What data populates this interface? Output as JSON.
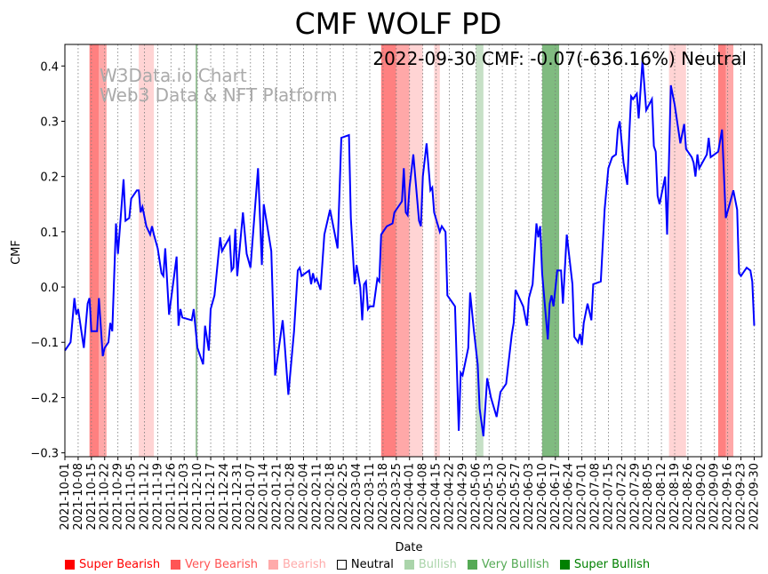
{
  "chart_data": {
    "type": "line",
    "title": "CMF WOLF PD",
    "xlabel": "Date",
    "ylabel": "CMF",
    "annotation": "2022-09-30 CMF: -0.07(-636.16%) Neutral",
    "watermark": [
      "W3Data.io Chart",
      "Web3 Data & NFT Platform"
    ],
    "x_origin": "2021-10-01",
    "x_units": "days since 2021-10-01",
    "xlim": [
      0,
      368
    ],
    "ylim": [
      -0.307,
      0.439
    ],
    "yticks": [
      -0.3,
      -0.2,
      -0.1,
      0.0,
      0.1,
      0.2,
      0.3,
      0.4
    ],
    "ytick_labels": [
      "−0.3",
      "−0.2",
      "−0.1",
      "0.0",
      "0.1",
      "0.2",
      "0.3",
      "0.4"
    ],
    "xtick_days": [
      0,
      7,
      14,
      21,
      28,
      35,
      42,
      49,
      56,
      63,
      70,
      77,
      84,
      91,
      98,
      105,
      112,
      119,
      126,
      133,
      140,
      147,
      154,
      161,
      168,
      175,
      182,
      189,
      196,
      203,
      210,
      217,
      224,
      231,
      238,
      245,
      252,
      259,
      266,
      273,
      280,
      287,
      294,
      301,
      308,
      315,
      322,
      329,
      336,
      343,
      350,
      357,
      364
    ],
    "xtick_labels": [
      "2021-10-01",
      "2021-10-08",
      "2021-10-15",
      "2021-10-22",
      "2021-10-29",
      "2021-11-05",
      "2021-11-12",
      "2021-11-19",
      "2021-11-26",
      "2021-12-03",
      "2021-12-10",
      "2021-12-17",
      "2021-12-24",
      "2021-12-31",
      "2022-01-07",
      "2022-01-14",
      "2022-01-21",
      "2022-01-28",
      "2022-02-04",
      "2022-02-11",
      "2022-02-18",
      "2022-02-25",
      "2022-03-04",
      "2022-03-11",
      "2022-03-18",
      "2022-03-25",
      "2022-04-01",
      "2022-04-08",
      "2022-04-15",
      "2022-04-22",
      "2022-04-29",
      "2022-05-06",
      "2022-05-13",
      "2022-05-20",
      "2022-05-27",
      "2022-06-03",
      "2022-06-10",
      "2022-06-17",
      "2022-06-24",
      "2022-07-01",
      "2022-07-08",
      "2022-07-15",
      "2022-07-22",
      "2022-07-29",
      "2022-08-05",
      "2022-08-12",
      "2022-08-19",
      "2022-08-26",
      "2022-09-02",
      "2022-09-09",
      "2022-09-16",
      "2022-09-23",
      "2022-09-30"
    ],
    "grid": "vertical dotted at x ticks",
    "series": [
      {
        "name": "CMF",
        "color": "#0000ff",
        "points": [
          [
            0,
            -0.115
          ],
          [
            3,
            -0.1
          ],
          [
            5,
            -0.02
          ],
          [
            6,
            -0.05
          ],
          [
            7,
            -0.04
          ],
          [
            10,
            -0.11
          ],
          [
            12,
            -0.03
          ],
          [
            13,
            -0.02
          ],
          [
            14,
            -0.08
          ],
          [
            17,
            -0.08
          ],
          [
            18,
            -0.02
          ],
          [
            20,
            -0.125
          ],
          [
            21,
            -0.11
          ],
          [
            23,
            -0.1
          ],
          [
            24,
            -0.065
          ],
          [
            25,
            -0.08
          ],
          [
            27,
            0.115
          ],
          [
            28,
            0.06
          ],
          [
            30,
            0.15
          ],
          [
            31,
            0.195
          ],
          [
            32,
            0.12
          ],
          [
            34,
            0.125
          ],
          [
            35,
            0.16
          ],
          [
            38,
            0.175
          ],
          [
            39,
            0.175
          ],
          [
            40,
            0.135
          ],
          [
            41,
            0.145
          ],
          [
            43,
            0.11
          ],
          [
            45,
            0.095
          ],
          [
            46,
            0.11
          ],
          [
            47,
            0.095
          ],
          [
            49,
            0.07
          ],
          [
            51,
            0.025
          ],
          [
            52,
            0.02
          ],
          [
            53,
            0.07
          ],
          [
            55,
            -0.05
          ],
          [
            59,
            0.055
          ],
          [
            60,
            -0.07
          ],
          [
            61,
            -0.04
          ],
          [
            62,
            -0.055
          ],
          [
            67,
            -0.06
          ],
          [
            68,
            -0.04
          ],
          [
            70,
            -0.11
          ],
          [
            73,
            -0.14
          ],
          [
            74,
            -0.07
          ],
          [
            76,
            -0.115
          ],
          [
            77,
            -0.04
          ],
          [
            79,
            -0.015
          ],
          [
            82,
            0.09
          ],
          [
            83,
            0.065
          ],
          [
            87,
            0.09
          ],
          [
            88,
            0.03
          ],
          [
            89,
            0.035
          ],
          [
            90,
            0.105
          ],
          [
            91,
            0.02
          ],
          [
            94,
            0.135
          ],
          [
            96,
            0.06
          ],
          [
            98,
            0.035
          ],
          [
            102,
            0.215
          ],
          [
            104,
            0.04
          ],
          [
            105,
            0.15
          ],
          [
            109,
            0.065
          ],
          [
            111,
            -0.16
          ],
          [
            115,
            -0.06
          ],
          [
            116,
            -0.1
          ],
          [
            118,
            -0.195
          ],
          [
            121,
            -0.08
          ],
          [
            123,
            0.03
          ],
          [
            124,
            0.035
          ],
          [
            125,
            0.02
          ],
          [
            129,
            0.03
          ],
          [
            130,
            0.005
          ],
          [
            131,
            0.025
          ],
          [
            132,
            0.01
          ],
          [
            133,
            0.015
          ],
          [
            135,
            -0.005
          ],
          [
            137,
            0.095
          ],
          [
            140,
            0.14
          ],
          [
            144,
            0.07
          ],
          [
            146,
            0.27
          ],
          [
            150,
            0.275
          ],
          [
            151,
            0.125
          ],
          [
            153,
            0.005
          ],
          [
            154,
            0.04
          ],
          [
            156,
            0.0
          ],
          [
            157,
            -0.06
          ],
          [
            158,
            0.005
          ],
          [
            159,
            0.01
          ],
          [
            160,
            -0.04
          ],
          [
            161,
            -0.035
          ],
          [
            163,
            -0.035
          ],
          [
            165,
            0.015
          ],
          [
            166,
            0.01
          ],
          [
            167,
            0.095
          ],
          [
            170,
            0.11
          ],
          [
            173,
            0.115
          ],
          [
            174,
            0.135
          ],
          [
            178,
            0.155
          ],
          [
            179,
            0.215
          ],
          [
            180,
            0.135
          ],
          [
            181,
            0.13
          ],
          [
            182,
            0.18
          ],
          [
            184,
            0.24
          ],
          [
            187,
            0.12
          ],
          [
            188,
            0.11
          ],
          [
            189,
            0.2
          ],
          [
            191,
            0.26
          ],
          [
            193,
            0.175
          ],
          [
            194,
            0.18
          ],
          [
            195,
            0.135
          ],
          [
            198,
            0.1
          ],
          [
            199,
            0.11
          ],
          [
            201,
            0.1
          ],
          [
            202,
            -0.015
          ],
          [
            206,
            -0.035
          ],
          [
            208,
            -0.26
          ],
          [
            209,
            -0.155
          ],
          [
            210,
            -0.16
          ],
          [
            213,
            -0.11
          ],
          [
            214,
            -0.01
          ],
          [
            216,
            -0.08
          ],
          [
            218,
            -0.14
          ],
          [
            219,
            -0.22
          ],
          [
            221,
            -0.27
          ],
          [
            223,
            -0.165
          ],
          [
            225,
            -0.2
          ],
          [
            228,
            -0.235
          ],
          [
            230,
            -0.19
          ],
          [
            233,
            -0.175
          ],
          [
            236,
            -0.085
          ],
          [
            237,
            -0.065
          ],
          [
            238,
            -0.005
          ],
          [
            240,
            -0.02
          ],
          [
            242,
            -0.035
          ],
          [
            244,
            -0.07
          ],
          [
            245,
            -0.02
          ],
          [
            247,
            0.005
          ],
          [
            249,
            0.115
          ],
          [
            250,
            0.09
          ],
          [
            251,
            0.11
          ],
          [
            252,
            0.025
          ],
          [
            255,
            -0.095
          ],
          [
            256,
            -0.03
          ],
          [
            257,
            -0.015
          ],
          [
            258,
            -0.035
          ],
          [
            260,
            0.03
          ],
          [
            262,
            0.03
          ],
          [
            263,
            -0.03
          ],
          [
            265,
            0.095
          ],
          [
            268,
            0.005
          ],
          [
            269,
            -0.09
          ],
          [
            271,
            -0.1
          ],
          [
            272,
            -0.085
          ],
          [
            273,
            -0.105
          ],
          [
            274,
            -0.065
          ],
          [
            276,
            -0.03
          ],
          [
            278,
            -0.06
          ],
          [
            279,
            0.005
          ],
          [
            283,
            0.01
          ],
          [
            285,
            0.14
          ],
          [
            287,
            0.215
          ],
          [
            289,
            0.235
          ],
          [
            291,
            0.24
          ],
          [
            292,
            0.285
          ],
          [
            293,
            0.3
          ],
          [
            295,
            0.225
          ],
          [
            297,
            0.185
          ],
          [
            298,
            0.275
          ],
          [
            299,
            0.345
          ],
          [
            300,
            0.34
          ],
          [
            302,
            0.35
          ],
          [
            303,
            0.305
          ],
          [
            305,
            0.41
          ],
          [
            307,
            0.32
          ],
          [
            310,
            0.34
          ],
          [
            311,
            0.255
          ],
          [
            312,
            0.245
          ],
          [
            313,
            0.165
          ],
          [
            314,
            0.15
          ],
          [
            317,
            0.2
          ],
          [
            318,
            0.095
          ],
          [
            320,
            0.365
          ],
          [
            322,
            0.33
          ],
          [
            325,
            0.26
          ],
          [
            327,
            0.295
          ],
          [
            328,
            0.25
          ],
          [
            331,
            0.235
          ],
          [
            332,
            0.225
          ],
          [
            333,
            0.2
          ],
          [
            334,
            0.24
          ],
          [
            335,
            0.215
          ],
          [
            339,
            0.24
          ],
          [
            340,
            0.27
          ],
          [
            341,
            0.235
          ],
          [
            345,
            0.245
          ],
          [
            347,
            0.285
          ],
          [
            349,
            0.125
          ],
          [
            351,
            0.15
          ],
          [
            353,
            0.175
          ],
          [
            355,
            0.14
          ],
          [
            356,
            0.025
          ],
          [
            357,
            0.02
          ],
          [
            358,
            0.025
          ],
          [
            360,
            0.035
          ],
          [
            362,
            0.03
          ],
          [
            363,
            0.01
          ],
          [
            364,
            -0.07
          ]
        ]
      }
    ],
    "bands": [
      {
        "from": 13,
        "to": 18,
        "label": "Super Bearish",
        "color": "#ff8080"
      },
      {
        "from": 18,
        "to": 22,
        "label": "Very Bearish",
        "color": "#ffa8a8"
      },
      {
        "from": 39,
        "to": 47,
        "label": "Bearish",
        "color": "#ffd4d4"
      },
      {
        "from": 69,
        "to": 70,
        "label": "Bullish",
        "color": "#9cc49c"
      },
      {
        "from": 167,
        "to": 175,
        "label": "Super Bearish",
        "color": "#ff8080"
      },
      {
        "from": 175,
        "to": 182,
        "label": "Very Bearish",
        "color": "#ffa8a8"
      },
      {
        "from": 182,
        "to": 189,
        "label": "Bearish",
        "color": "#ffd4d4"
      },
      {
        "from": 195,
        "to": 198,
        "label": "Bearish",
        "color": "#ffd4d4"
      },
      {
        "from": 217,
        "to": 221,
        "label": "Bullish",
        "color": "#c6e0c6"
      },
      {
        "from": 252,
        "to": 261,
        "label": "Very Bullish",
        "color": "#80bb80"
      },
      {
        "from": 319,
        "to": 328,
        "label": "Bearish",
        "color": "#ffd4d4"
      },
      {
        "from": 345,
        "to": 349,
        "label": "Super Bearish",
        "color": "#ff8080"
      },
      {
        "from": 349,
        "to": 353,
        "label": "Very Bearish",
        "color": "#ffa8a8"
      }
    ],
    "legend_position": "bottom",
    "legend": [
      {
        "label": "Super Bearish",
        "color": "#ff0000"
      },
      {
        "label": "Very Bearish",
        "color": "#ff5555"
      },
      {
        "label": "Bearish",
        "color": "#ffaaaa"
      },
      {
        "label": "Neutral",
        "color": "#000000"
      },
      {
        "label": "Bullish",
        "color": "#aad4aa"
      },
      {
        "label": "Very Bullish",
        "color": "#55aa55"
      },
      {
        "label": "Super Bullish",
        "color": "#008000"
      }
    ]
  }
}
